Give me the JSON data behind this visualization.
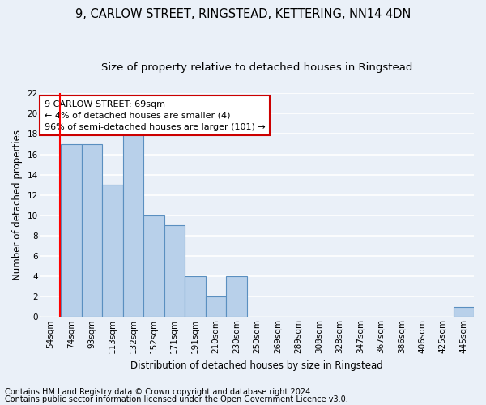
{
  "title1": "9, CARLOW STREET, RINGSTEAD, KETTERING, NN14 4DN",
  "title2": "Size of property relative to detached houses in Ringstead",
  "xlabel": "Distribution of detached houses by size in Ringstead",
  "ylabel": "Number of detached properties",
  "categories": [
    "54sqm",
    "74sqm",
    "93sqm",
    "113sqm",
    "132sqm",
    "152sqm",
    "171sqm",
    "191sqm",
    "210sqm",
    "230sqm",
    "250sqm",
    "269sqm",
    "289sqm",
    "308sqm",
    "328sqm",
    "347sqm",
    "367sqm",
    "386sqm",
    "406sqm",
    "425sqm",
    "445sqm"
  ],
  "values": [
    0,
    17,
    17,
    13,
    18,
    10,
    9,
    4,
    2,
    4,
    0,
    0,
    0,
    0,
    0,
    0,
    0,
    0,
    0,
    0,
    1
  ],
  "bar_color": "#b8d0ea",
  "bar_edge_color": "#5a8fc0",
  "red_line_x": 0.47,
  "annotation_text": "9 CARLOW STREET: 69sqm\n← 4% of detached houses are smaller (4)\n96% of semi-detached houses are larger (101) →",
  "annotation_box_color": "#ffffff",
  "annotation_box_edge_color": "#cc0000",
  "ylim": [
    0,
    22
  ],
  "yticks": [
    0,
    2,
    4,
    6,
    8,
    10,
    12,
    14,
    16,
    18,
    20,
    22
  ],
  "footer1": "Contains HM Land Registry data © Crown copyright and database right 2024.",
  "footer2": "Contains public sector information licensed under the Open Government Licence v3.0.",
  "bg_color": "#eaf0f8",
  "grid_color": "#ffffff",
  "title1_fontsize": 10.5,
  "title2_fontsize": 9.5,
  "axis_label_fontsize": 8.5,
  "tick_fontsize": 7.5,
  "footer_fontsize": 7.0,
  "ann_fontsize": 8.0
}
